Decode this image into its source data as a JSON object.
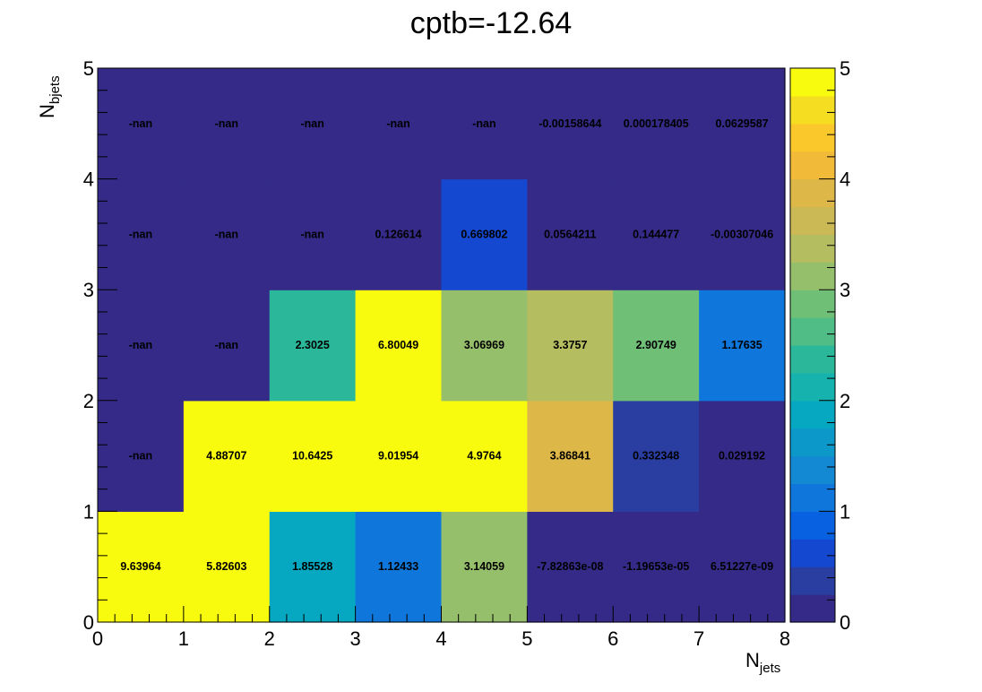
{
  "chart_data": {
    "type": "heatmap",
    "title": "cptb=-12.64",
    "xlabel": {
      "main": "N",
      "sub": "jets"
    },
    "ylabel": {
      "main": "N",
      "sub": "bjets"
    },
    "x_edges": [
      0,
      1,
      2,
      3,
      4,
      5,
      6,
      7,
      8
    ],
    "y_edges": [
      0,
      1,
      2,
      3,
      4,
      5
    ],
    "xlim": [
      0,
      8
    ],
    "ylim": [
      0,
      5
    ],
    "zlim": [
      0,
      5
    ],
    "x_ticks": [
      "0",
      "1",
      "2",
      "3",
      "4",
      "5",
      "6",
      "7",
      "8"
    ],
    "y_ticks": [
      "0",
      "1",
      "2",
      "3",
      "4",
      "5"
    ],
    "z_ticks": [
      "0",
      "1",
      "2",
      "3",
      "4",
      "5"
    ],
    "rows": [
      {
        "y": 0,
        "labels": [
          "9.63964",
          "5.82603",
          "1.85528",
          "1.12433",
          "3.14059",
          "-7.82863e-08",
          "-1.19653e-05",
          "6.51227e-09"
        ],
        "values": [
          9.63964,
          5.82603,
          1.85528,
          1.12433,
          3.14059,
          -7.82863e-08,
          -1.19653e-05,
          6.51227e-09
        ]
      },
      {
        "y": 1,
        "labels": [
          "-nan",
          "4.88707",
          "10.6425",
          "9.01954",
          "4.9764",
          "3.86841",
          "0.332348",
          "0.029192"
        ],
        "values": [
          null,
          4.88707,
          10.6425,
          9.01954,
          4.9764,
          3.86841,
          0.332348,
          0.029192
        ]
      },
      {
        "y": 2,
        "labels": [
          "-nan",
          "-nan",
          "2.3025",
          "6.80049",
          "3.06969",
          "3.3757",
          "2.90749",
          "1.17635"
        ],
        "values": [
          null,
          null,
          2.3025,
          6.80049,
          3.06969,
          3.3757,
          2.90749,
          1.17635
        ]
      },
      {
        "y": 3,
        "labels": [
          "-nan",
          "-nan",
          "-nan",
          "0.126614",
          "0.669802",
          "0.0564211",
          "0.144477",
          "-0.00307046"
        ],
        "values": [
          null,
          null,
          null,
          0.126614,
          0.669802,
          0.0564211,
          0.144477,
          -0.00307046
        ]
      },
      {
        "y": 4,
        "labels": [
          "-nan",
          "-nan",
          "-nan",
          "-nan",
          "-nan",
          "-0.00158644",
          "0.000178405",
          "0.0629587"
        ],
        "values": [
          null,
          null,
          null,
          null,
          null,
          -0.00158644,
          0.000178405,
          0.0629587
        ]
      }
    ],
    "palette": [
      "#352a87",
      "#2a3da0",
      "#1448d0",
      "#0861e1",
      "#0f77db",
      "#1388d3",
      "#0c98c9",
      "#06a7c0",
      "#16b2ad",
      "#2bb89a",
      "#50bd86",
      "#70bf77",
      "#96bf6c",
      "#b4bd60",
      "#cbb955",
      "#ddb848",
      "#f1ba39",
      "#fac82a",
      "#f5de21",
      "#f9fb0e"
    ],
    "nan_color": "#352a87",
    "grid": false,
    "legend": "colorbar-right"
  }
}
